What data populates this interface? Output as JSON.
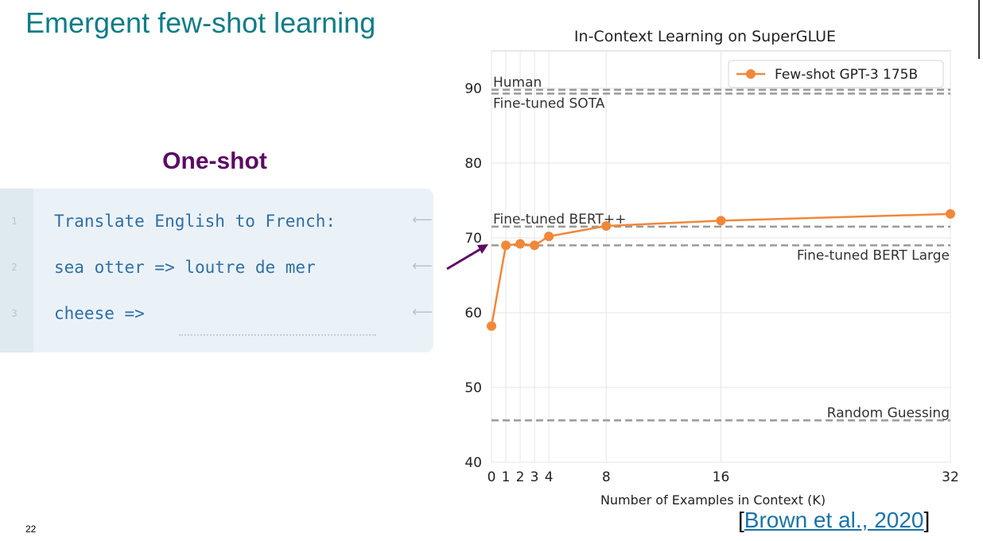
{
  "slide": {
    "title": "Emergent few-shot learning",
    "page_number": "22",
    "citation_open": "[",
    "citation_text": "Brown et al., 2020",
    "citation_close": "]"
  },
  "example": {
    "heading": "One-shot",
    "lines": [
      {
        "num": "1",
        "text": "Translate English to French:",
        "arrow": "⟵"
      },
      {
        "num": "2",
        "text": "sea otter => loutre de mer",
        "arrow": "⟵"
      },
      {
        "num": "3",
        "text": "cheese =>",
        "arrow": "⟵"
      }
    ]
  },
  "chart_data": {
    "type": "line",
    "title": "In-Context Learning on SuperGLUE",
    "xlabel": "Number of Examples in Context (K)",
    "ylabel": "",
    "xlim": [
      0,
      32
    ],
    "ylim": [
      40,
      95
    ],
    "x_ticks": [
      0,
      1,
      2,
      3,
      4,
      8,
      16,
      32
    ],
    "y_ticks": [
      40,
      50,
      60,
      70,
      80,
      90
    ],
    "grid": true,
    "legend_position": "top-right",
    "series": [
      {
        "name": "Few-shot GPT-3 175B",
        "color": "#f0883a",
        "x": [
          0,
          1,
          2,
          3,
          4,
          8,
          16,
          32
        ],
        "y": [
          58.2,
          69.0,
          69.2,
          69.0,
          70.2,
          71.6,
          72.3,
          73.2
        ]
      }
    ],
    "reference_lines": [
      {
        "label": "Human",
        "y": 89.8,
        "label_side": "left",
        "label_pos": "above"
      },
      {
        "label": "Fine-tuned SOTA",
        "y": 89.3,
        "label_side": "left",
        "label_pos": "below"
      },
      {
        "label": "Fine-tuned BERT++",
        "y": 71.5,
        "label_side": "left",
        "label_pos": "above"
      },
      {
        "label": "Fine-tuned BERT Large",
        "y": 69.0,
        "label_side": "right",
        "label_pos": "below"
      },
      {
        "label": "Random Guessing",
        "y": 45.6,
        "label_side": "right",
        "label_pos": "above"
      }
    ]
  }
}
